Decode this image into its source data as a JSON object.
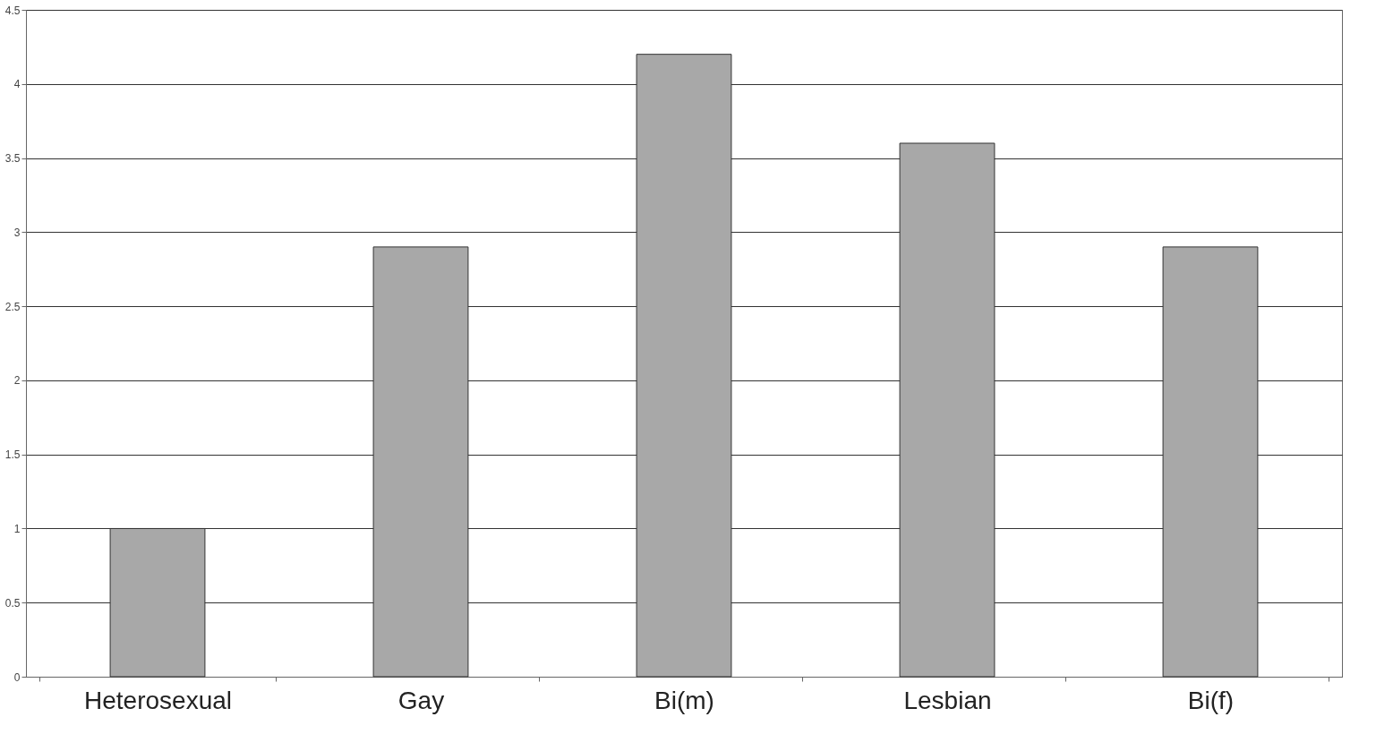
{
  "chart_data": {
    "type": "bar",
    "categories": [
      "Heterosexual",
      "Gay",
      "Bi(m)",
      "Lesbian",
      "Bi(f)"
    ],
    "values": [
      1,
      2.9,
      4.2,
      3.6,
      2.9
    ],
    "color": "#a8a8a8",
    "ylim": [
      0,
      4.5
    ],
    "yticks": [
      0,
      0.5,
      1,
      1.5,
      2,
      2.5,
      3,
      3.5,
      4,
      4.5
    ],
    "grid": "y"
  }
}
